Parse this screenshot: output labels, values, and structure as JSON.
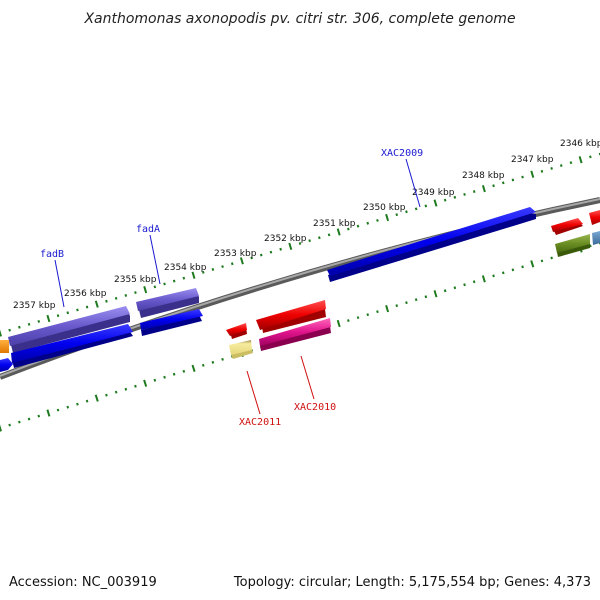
{
  "title": "Xanthomonas axonopodis pv. citri str. 306, complete genome",
  "footer": {
    "accession": "Accession: NC_003919",
    "summary": "Topology: circular; Length: 5,175,554 bp; Genes: 4,373"
  },
  "ticks": [
    {
      "label": "2346 kbp"
    },
    {
      "label": "2347 kbp"
    },
    {
      "label": "2348 kbp"
    },
    {
      "label": "2349 kbp"
    },
    {
      "label": "2350 kbp"
    },
    {
      "label": "2351 kbp"
    },
    {
      "label": "2352 kbp"
    },
    {
      "label": "2353 kbp"
    },
    {
      "label": "2354 kbp"
    },
    {
      "label": "2355 kbp"
    },
    {
      "label": "2356 kbp"
    },
    {
      "label": "2357 kbp"
    }
  ],
  "gene_labels": {
    "xac2009": "XAC2009",
    "fada": "fadA",
    "fadb": "fadB",
    "xac2010": "XAC2010",
    "xac2011": "XAC2011"
  },
  "colors": {
    "backbone": "#808080",
    "tick": "#1e7a1e",
    "blue": "#0000ee",
    "purple": "#6a5acd",
    "red": "#ee0000",
    "pink": "#e0148c",
    "yellow": "#eee08a",
    "olive": "#6b8e23",
    "orange": "#ff8c00",
    "steelblue": "#4682b4",
    "label_blue": "#1a1ad0",
    "label_red": "#d01010"
  }
}
